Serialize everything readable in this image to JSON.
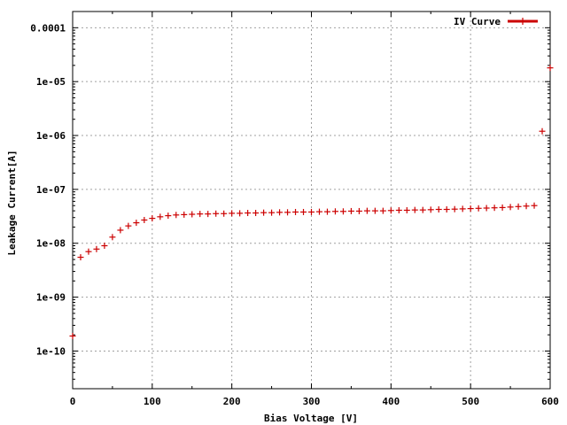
{
  "chart_data": {
    "type": "scatter",
    "xlabel": "Bias Voltage [V]",
    "ylabel": "Leakage Current[A]",
    "xlim": [
      0,
      600
    ],
    "ylim": [
      2e-11,
      0.0002
    ],
    "yscale": "log",
    "grid": true,
    "legend_position": "top-right",
    "x_ticks": [
      0,
      100,
      200,
      300,
      400,
      500,
      600
    ],
    "x_tick_labels": [
      "0",
      "100",
      "200",
      "300",
      "400",
      "500",
      "600"
    ],
    "y_ticks": [
      1e-10,
      1e-09,
      1e-08,
      1e-07,
      1e-06,
      1e-05,
      0.0001
    ],
    "y_tick_labels": [
      "1e-10",
      "1e-09",
      "1e-08",
      "1e-07",
      "1e-06",
      "1e-05",
      "0.0001"
    ],
    "series": [
      {
        "name": "IV Curve",
        "color": "#cc0000",
        "marker": "plus",
        "x": [
          0,
          10,
          20,
          30,
          40,
          50,
          60,
          70,
          80,
          90,
          100,
          110,
          120,
          130,
          140,
          150,
          160,
          170,
          180,
          190,
          200,
          210,
          220,
          230,
          240,
          250,
          260,
          270,
          280,
          290,
          300,
          310,
          320,
          330,
          340,
          350,
          360,
          370,
          380,
          390,
          400,
          410,
          420,
          430,
          440,
          450,
          460,
          470,
          480,
          490,
          500,
          510,
          520,
          530,
          540,
          550,
          560,
          570,
          580,
          590,
          600
        ],
        "y": [
          1.9e-10,
          5.5e-09,
          7e-09,
          7.8e-09,
          9e-09,
          1.3e-08,
          1.75e-08,
          2.1e-08,
          2.4e-08,
          2.7e-08,
          2.9e-08,
          3.1e-08,
          3.25e-08,
          3.35e-08,
          3.4e-08,
          3.45e-08,
          3.5e-08,
          3.5e-08,
          3.55e-08,
          3.55e-08,
          3.6e-08,
          3.6e-08,
          3.65e-08,
          3.65e-08,
          3.7e-08,
          3.7e-08,
          3.75e-08,
          3.75e-08,
          3.8e-08,
          3.8e-08,
          3.8e-08,
          3.85e-08,
          3.85e-08,
          3.9e-08,
          3.9e-08,
          3.95e-08,
          3.95e-08,
          4e-08,
          4e-08,
          4e-08,
          4.05e-08,
          4.1e-08,
          4.1e-08,
          4.15e-08,
          4.15e-08,
          4.2e-08,
          4.25e-08,
          4.25e-08,
          4.3e-08,
          4.35e-08,
          4.4e-08,
          4.45e-08,
          4.5e-08,
          4.55e-08,
          4.6e-08,
          4.7e-08,
          4.8e-08,
          4.9e-08,
          5e-08,
          1.2e-06,
          1.8e-05
        ]
      }
    ]
  }
}
